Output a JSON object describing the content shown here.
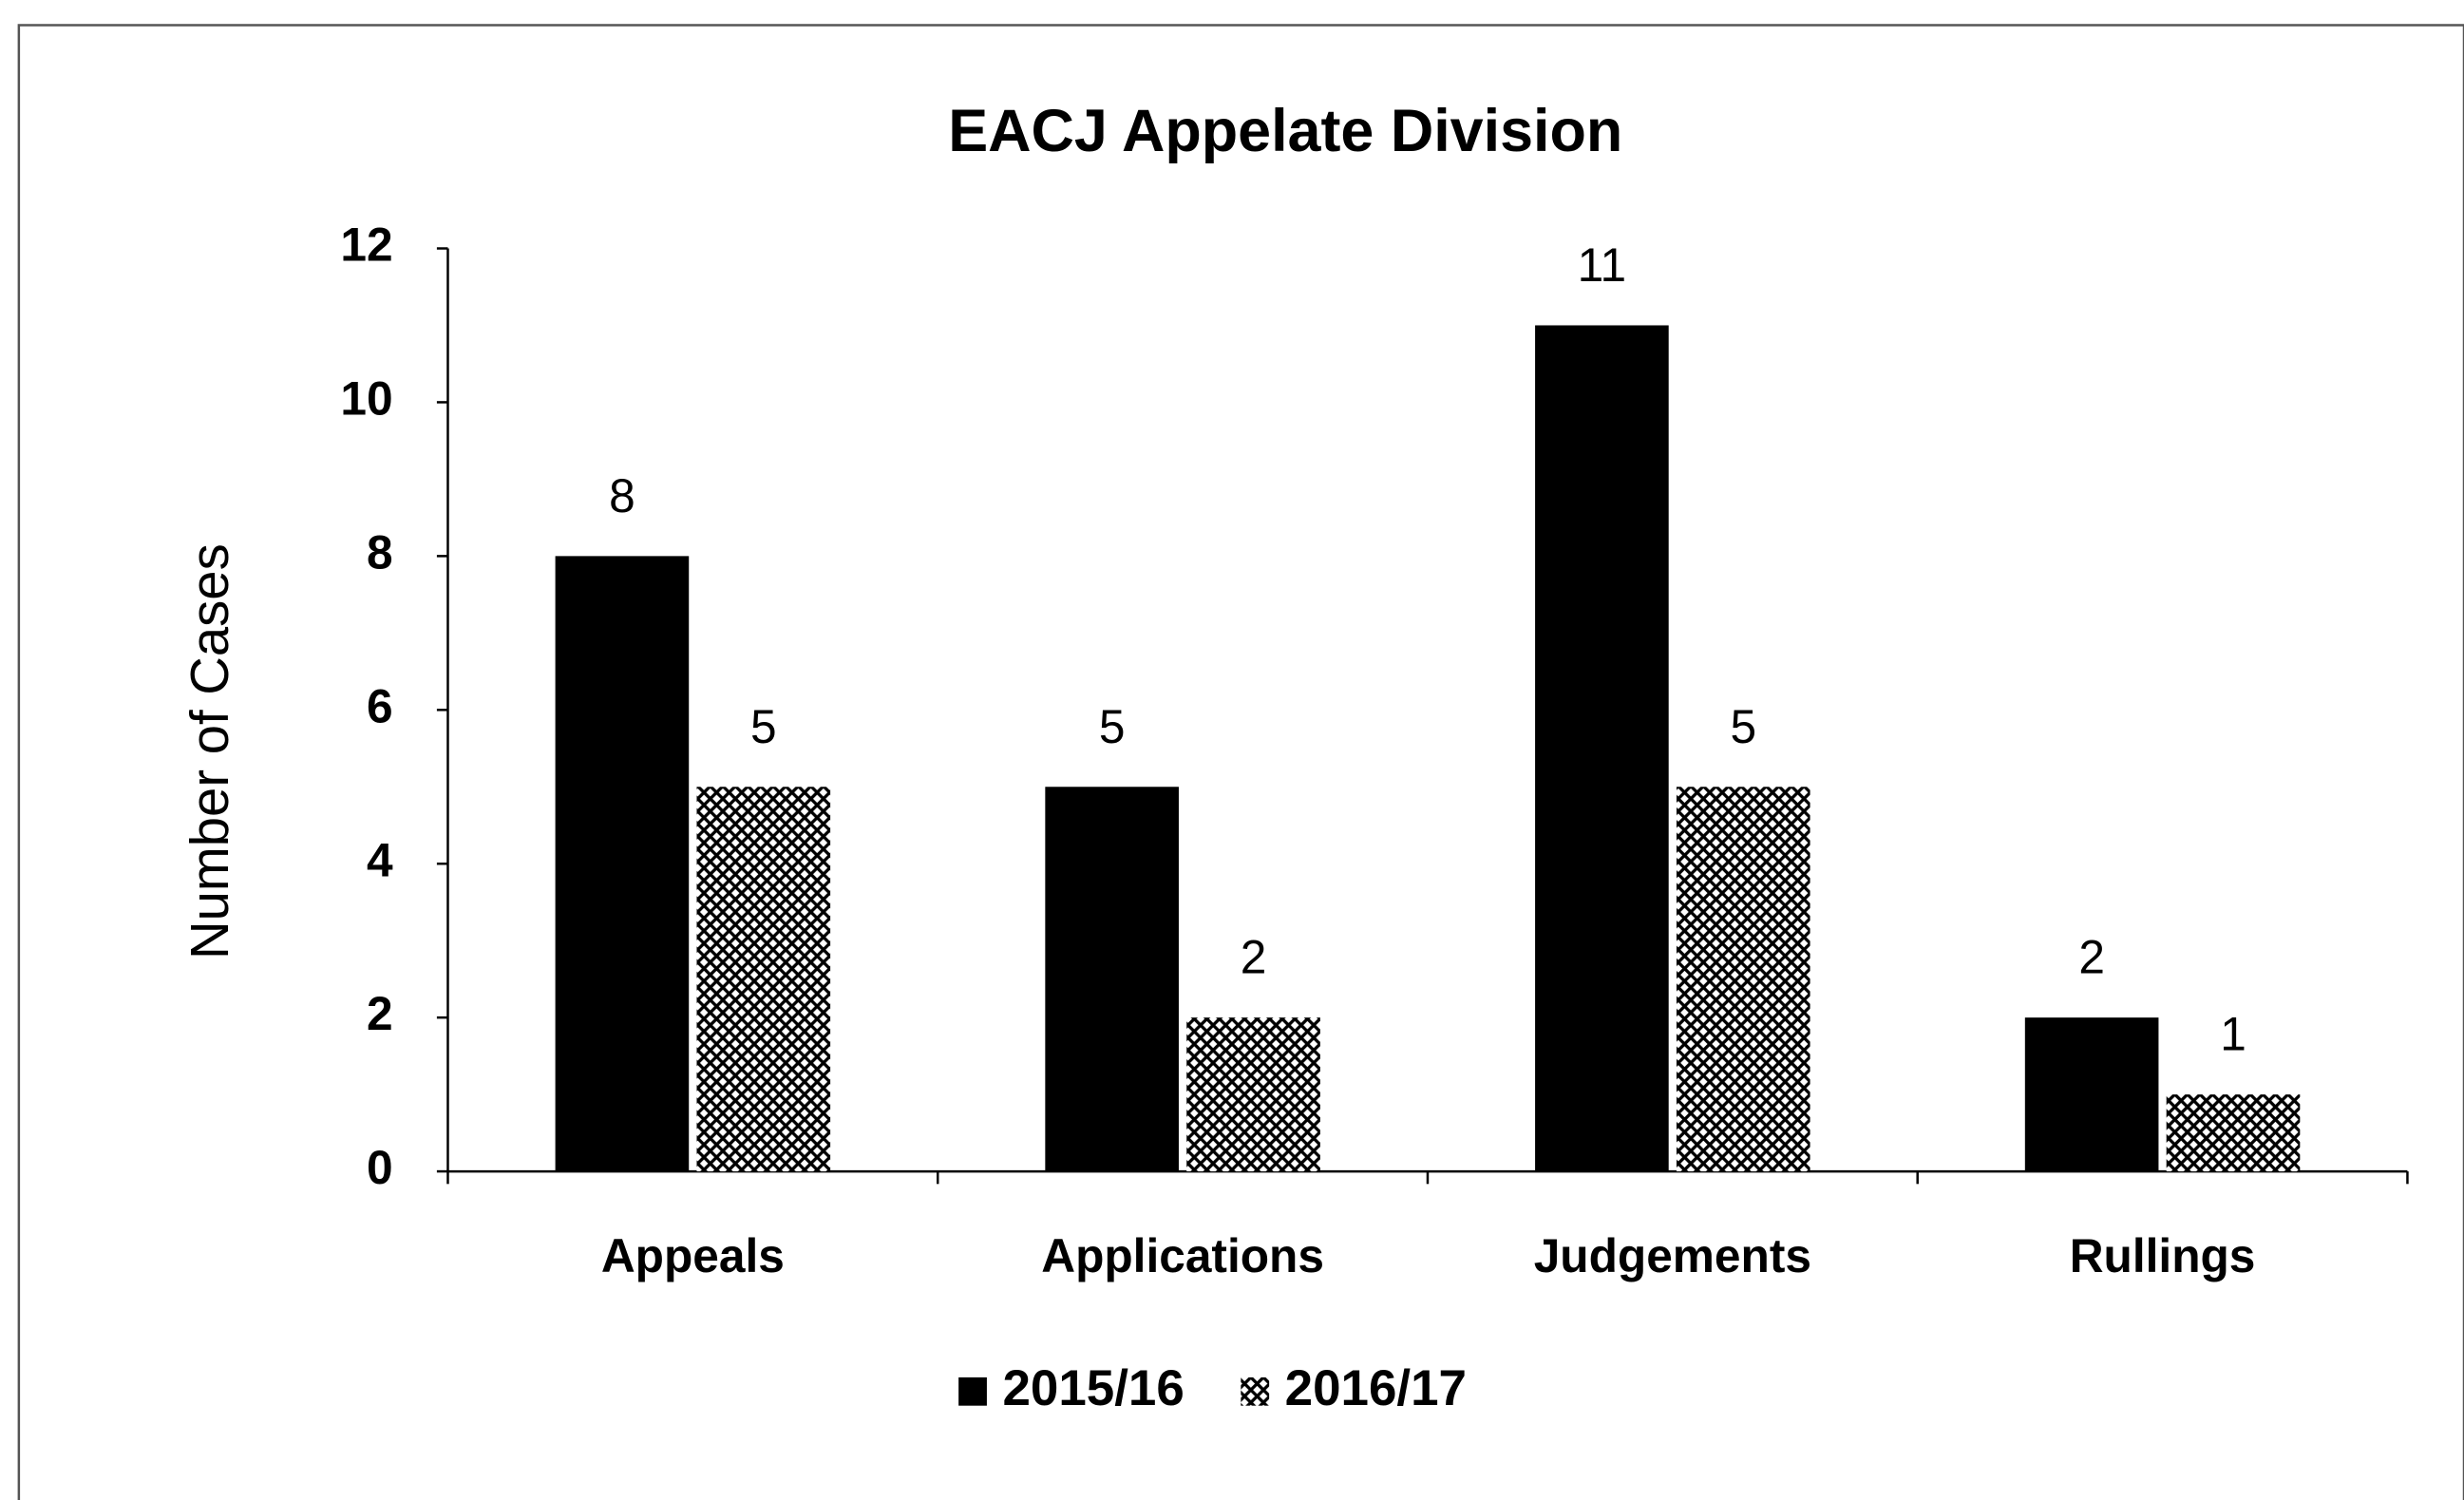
{
  "chart_data": {
    "type": "bar",
    "title": "EACJ Appelate Division",
    "y_label": "Number of Cases",
    "categories": [
      "Appeals",
      "Applications",
      "Judgements",
      "Rullings"
    ],
    "series": [
      {
        "name": "2015/16",
        "color": "#000000",
        "values": [
          8,
          5,
          11,
          2
        ]
      },
      {
        "name": "2016/17",
        "color": "#000000",
        "hatch": true,
        "values": [
          5,
          2,
          5,
          1
        ]
      }
    ],
    "ylim": [
      0,
      12
    ],
    "yticks": [
      0,
      2,
      4,
      6,
      8,
      10,
      12
    ],
    "grid": false,
    "legend": "bottom",
    "data_labels": true
  }
}
